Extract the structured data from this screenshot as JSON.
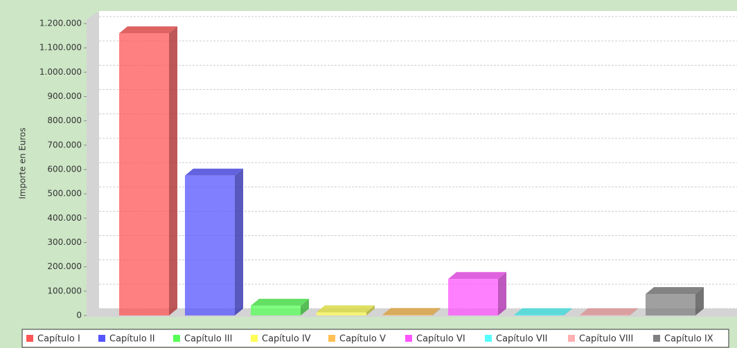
{
  "chart_data": {
    "type": "bar3d",
    "y_label": "Importe en Euros",
    "ylim": [
      0,
      1200000
    ],
    "yticks": [
      0,
      {
        "value": 100000,
        "label": "100.000"
      },
      {
        "value": 200000,
        "label": "200.000"
      },
      {
        "value": 300000,
        "label": "300.000"
      },
      {
        "value": 400000,
        "label": "400.000"
      },
      {
        "value": 500000,
        "label": "500.000"
      },
      {
        "value": 600000,
        "label": "600.000"
      },
      {
        "value": 700000,
        "label": "700.000"
      },
      {
        "value": 800000,
        "label": "800.000"
      },
      {
        "value": 900000,
        "label": "900.000"
      },
      {
        "value": 1000000,
        "label": "1.000.000"
      },
      {
        "value": 1100000,
        "label": "1.100.000"
      },
      {
        "value": 1200000,
        "label": "1.200.000"
      }
    ],
    "grid": true,
    "legend": "bottom",
    "series": [
      {
        "name": "Capítulo I",
        "color": "#ff5555",
        "values": [
          1160000
        ]
      },
      {
        "name": "Capítulo II",
        "color": "#5555ff",
        "values": [
          575000
        ]
      },
      {
        "name": "Capítulo III",
        "color": "#55ff55",
        "values": [
          40000
        ]
      },
      {
        "name": "Capítulo IV",
        "color": "#ffff55",
        "values": [
          13000
        ]
      },
      {
        "name": "Capítulo V",
        "color": "#ffc055",
        "values": [
          2000
        ]
      },
      {
        "name": "Capítulo VI",
        "color": "#ff55ff",
        "values": [
          150000
        ]
      },
      {
        "name": "Capítulo VII",
        "color": "#55ffff",
        "values": [
          1500
        ]
      },
      {
        "name": "Capítulo VIII",
        "color": "#ffafaf",
        "values": [
          1500
        ]
      },
      {
        "name": "Capítulo IX",
        "color": "#808080",
        "values": [
          88000
        ]
      }
    ]
  }
}
